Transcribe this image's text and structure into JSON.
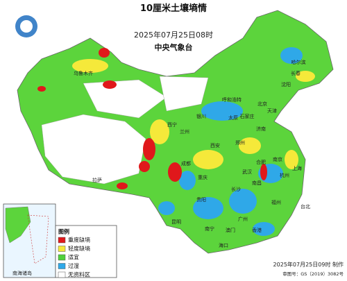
{
  "header": {
    "title": "10厘米土壤墒情",
    "time": "2025年07月25日08时",
    "agency": "中央气象台"
  },
  "legend": {
    "title": "图例",
    "items": [
      {
        "label": "重度缺墒",
        "color": "#e0181b"
      },
      {
        "label": "轻度缺墒",
        "color": "#f5e93a"
      },
      {
        "label": "适宜",
        "color": "#4fd13a"
      },
      {
        "label": "过湿",
        "color": "#2fa8e8"
      },
      {
        "label": "无资料区",
        "color": "#ffffff"
      }
    ]
  },
  "inset": {
    "label": "南海诸岛"
  },
  "footer": {
    "made": "2025年07月25日09时 制作",
    "approval": "审图号：GS（2019）3082号"
  },
  "places": [
    {
      "name": "北京"
    },
    {
      "name": "天津"
    },
    {
      "name": "上海"
    },
    {
      "name": "武汉"
    },
    {
      "name": "长沙"
    },
    {
      "name": "南京"
    },
    {
      "name": "广州"
    },
    {
      "name": "海口"
    },
    {
      "name": "台北"
    },
    {
      "name": "香港"
    },
    {
      "name": "澳门"
    },
    {
      "name": "昆明"
    },
    {
      "name": "成都"
    },
    {
      "name": "重庆"
    },
    {
      "name": "西安"
    },
    {
      "name": "郑州"
    },
    {
      "name": "拉萨"
    },
    {
      "name": "西宁"
    },
    {
      "name": "兰州"
    },
    {
      "name": "乌鲁木齐"
    },
    {
      "name": "哈尔滨"
    },
    {
      "name": "长春"
    },
    {
      "name": "沈阳"
    },
    {
      "name": "呼和浩特"
    },
    {
      "name": "银川"
    },
    {
      "name": "太原"
    },
    {
      "name": "石家庄"
    },
    {
      "name": "济南"
    },
    {
      "name": "合肥"
    },
    {
      "name": "杭州"
    },
    {
      "name": "南昌"
    },
    {
      "name": "福州"
    },
    {
      "name": "贵阳"
    },
    {
      "name": "南宁"
    }
  ]
}
